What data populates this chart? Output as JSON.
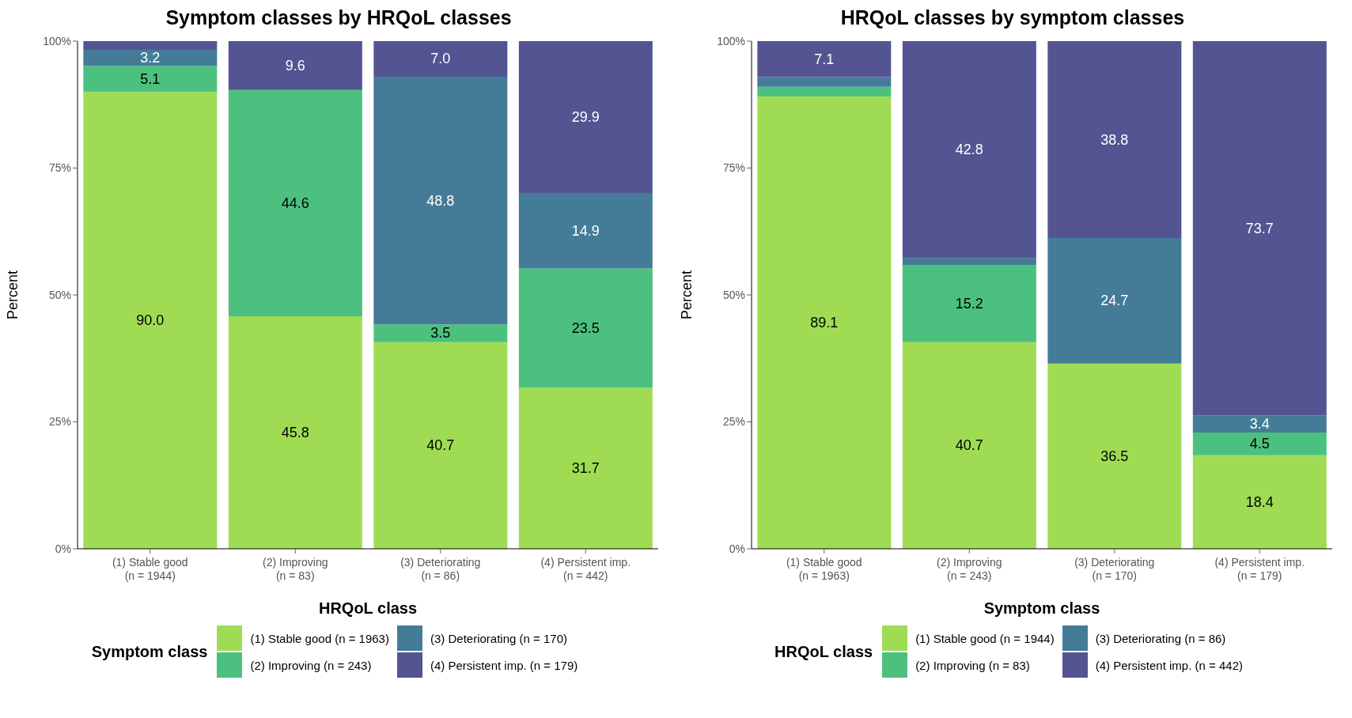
{
  "chart_data": [
    {
      "type": "bar",
      "title": "Symptom classes by HRQoL classes",
      "xlabel": "HRQoL class",
      "ylabel": "Percent",
      "legend_title": "Symptom class",
      "stacked": true,
      "legend": "bottom",
      "grid": false,
      "categories": [
        "(1) Stable good\n(n = 1944)",
        "(2) Improving\n(n = 83)",
        "(3) Deteriorating\n(n = 86)",
        "(4) Persistent imp.\n(n = 442)"
      ],
      "ylim": [
        0,
        100
      ],
      "yticks": [
        {
          "value": 0,
          "label": "0%"
        },
        {
          "value": 25,
          "label": "25%"
        },
        {
          "value": 50,
          "label": "50%"
        },
        {
          "value": 75,
          "label": "75%"
        },
        {
          "value": 100,
          "label": "100%"
        }
      ],
      "series": [
        {
          "name": "(1) Stable good (n = 1963)",
          "color": "#9fdc54",
          "values": [
            90.0,
            45.8,
            40.7,
            31.7
          ],
          "value_labels": [
            "90.0",
            "45.8",
            "40.7",
            "31.7"
          ]
        },
        {
          "name": "(2) Improving (n = 243)",
          "color": "#4cc17f",
          "values": [
            5.1,
            44.6,
            3.5,
            23.5
          ],
          "value_labels": [
            "5.1",
            "44.6",
            "3.5",
            "23.5"
          ]
        },
        {
          "name": "(3) Deteriorating (n = 170)",
          "color": "#447c98",
          "values": [
            3.2,
            0,
            48.8,
            14.9
          ],
          "value_labels": [
            "3.2",
            null,
            "48.8",
            "14.9"
          ]
        },
        {
          "name": "(4) Persistent imp. (n = 179)",
          "color": "#545493",
          "values": [
            1.7,
            9.6,
            7.0,
            29.9
          ],
          "value_labels": [
            null,
            "9.6",
            "7.0",
            "29.9"
          ]
        }
      ]
    },
    {
      "type": "bar",
      "title": "HRQoL classes by symptom classes",
      "xlabel": "Symptom class",
      "ylabel": "Percent",
      "legend_title": "HRQoL class",
      "stacked": true,
      "legend": "bottom",
      "grid": false,
      "categories": [
        "(1) Stable good\n(n = 1963)",
        "(2) Improving\n(n = 243)",
        "(3) Deteriorating\n(n = 170)",
        "(4) Persistent imp.\n(n = 179)"
      ],
      "ylim": [
        0,
        100
      ],
      "yticks": [
        {
          "value": 0,
          "label": "0%"
        },
        {
          "value": 25,
          "label": "25%"
        },
        {
          "value": 50,
          "label": "50%"
        },
        {
          "value": 75,
          "label": "75%"
        },
        {
          "value": 100,
          "label": "100%"
        }
      ],
      "series": [
        {
          "name": "(1) Stable good (n = 1944)",
          "color": "#9fdc54",
          "values": [
            89.1,
            40.7,
            36.5,
            18.4
          ],
          "value_labels": [
            "89.1",
            "40.7",
            "36.5",
            "18.4"
          ]
        },
        {
          "name": "(2) Improving (n = 83)",
          "color": "#4cc17f",
          "values": [
            1.9,
            15.2,
            0,
            4.5
          ],
          "value_labels": [
            null,
            "15.2",
            null,
            "4.5"
          ]
        },
        {
          "name": "(3) Deteriorating (n = 86)",
          "color": "#447c98",
          "values": [
            1.9,
            1.3,
            24.7,
            3.4
          ],
          "value_labels": [
            null,
            null,
            "24.7",
            "3.4"
          ]
        },
        {
          "name": "(4) Persistent imp. (n = 442)",
          "color": "#545493",
          "values": [
            7.1,
            42.8,
            38.8,
            73.7
          ],
          "value_labels": [
            "7.1",
            "42.8",
            "38.8",
            "73.7"
          ]
        }
      ]
    }
  ]
}
